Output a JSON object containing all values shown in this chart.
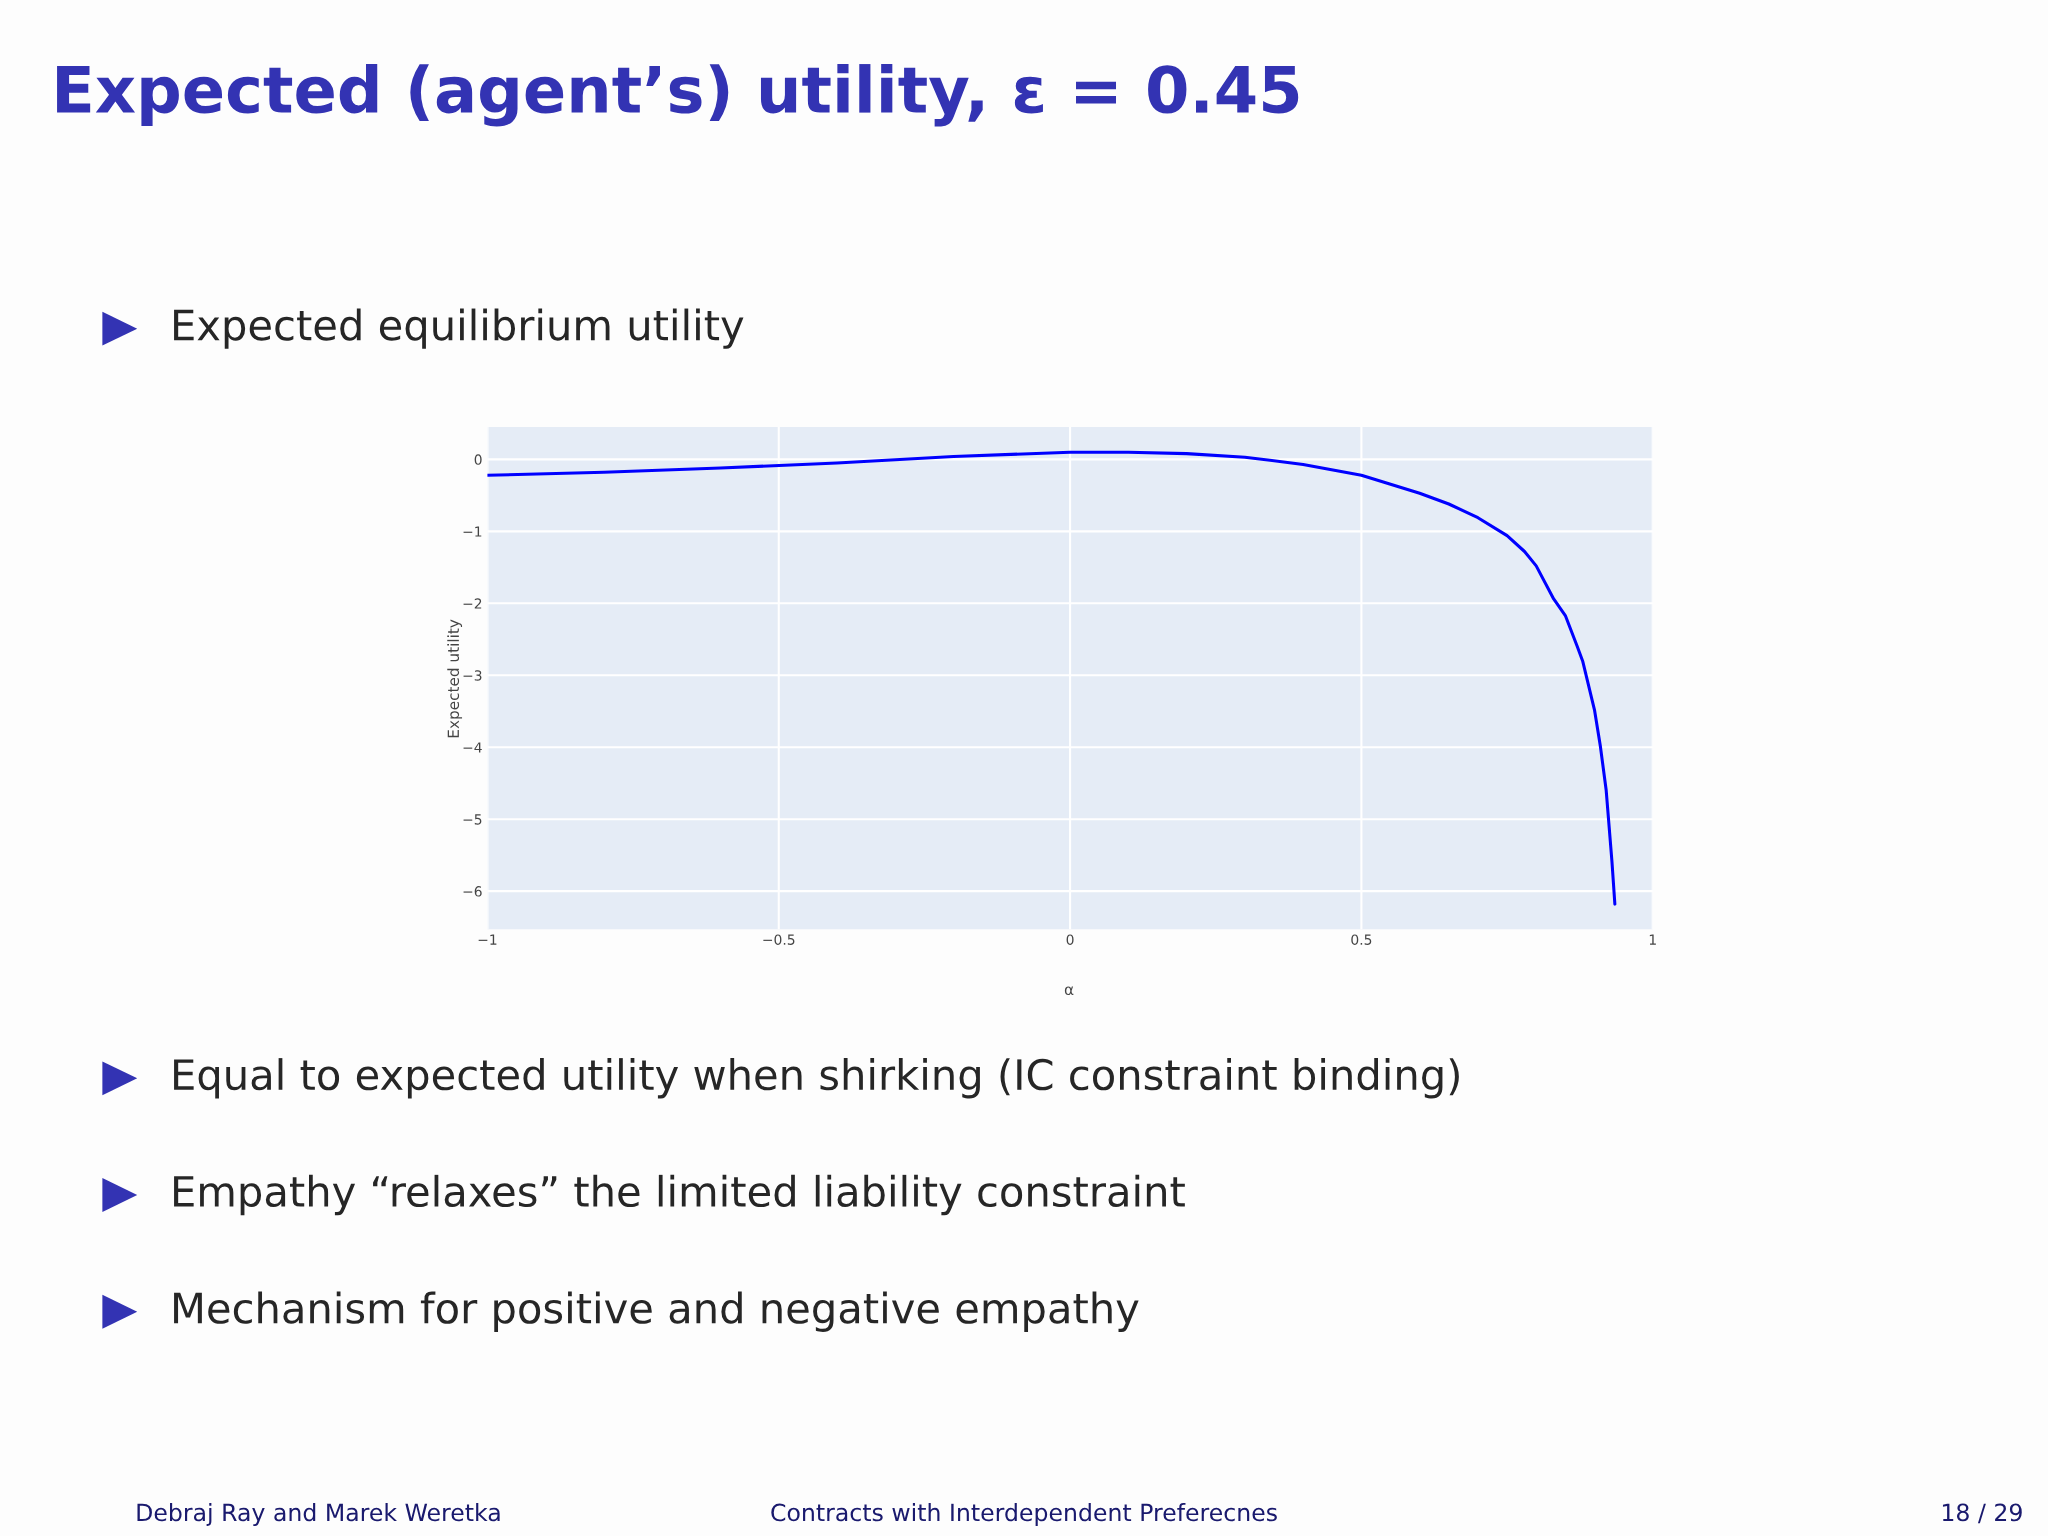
{
  "chart_data": {
    "type": "line",
    "title": "Expected (agent’s) utility, ε = 0.45",
    "subtitle": "Expected equilibrium utility",
    "xlabel": "α",
    "ylabel": "Expected utility",
    "x": [
      -1,
      -0.8,
      -0.6,
      -0.4,
      -0.2,
      0,
      0.1,
      0.2,
      0.3,
      0.4,
      0.5,
      0.6,
      0.65,
      0.7,
      0.75,
      0.78,
      0.8,
      0.83,
      0.85,
      0.87,
      0.88,
      0.9,
      0.91,
      0.92,
      0.93,
      0.935
    ],
    "series": [
      {
        "color": "#0000ff",
        "values": [
          -0.22,
          -0.18,
          -0.12,
          -0.05,
          0.04,
          0.1,
          0.1,
          0.08,
          0.03,
          -0.07,
          -0.22,
          -0.47,
          -0.62,
          -0.81,
          -1.06,
          -1.28,
          -1.48,
          -1.94,
          -2.17,
          -2.59,
          -2.81,
          -3.48,
          -3.98,
          -4.59,
          -5.59,
          -6.18
        ]
      }
    ],
    "xlim": [
      -1,
      1
    ],
    "ylim": [
      -6.53,
      0.45
    ],
    "xticks": [
      {
        "value": -1,
        "label": "−1"
      },
      {
        "value": -0.5,
        "label": "−0.5"
      },
      0,
      0.5,
      1
    ],
    "yticks": [
      {
        "value": -6,
        "label": "−6"
      },
      {
        "value": -5,
        "label": "−5"
      },
      {
        "value": -4,
        "label": "−4"
      },
      {
        "value": -3,
        "label": "−3"
      },
      {
        "value": -2,
        "label": "−2"
      },
      {
        "value": -1,
        "label": "−1"
      },
      0
    ],
    "grid": true,
    "marker": "none",
    "line_style": "solid",
    "annotations": [
      "Equal to expected utility when shirking (IC constraint binding)",
      "Empathy “relaxes” the limited liability constraint",
      "Mechanism for positive and negative empathy",
      "Debraj Ray and Marek Weretka",
      "Contracts with Interdependent Preferecnes",
      "18 / 29"
    ]
  }
}
